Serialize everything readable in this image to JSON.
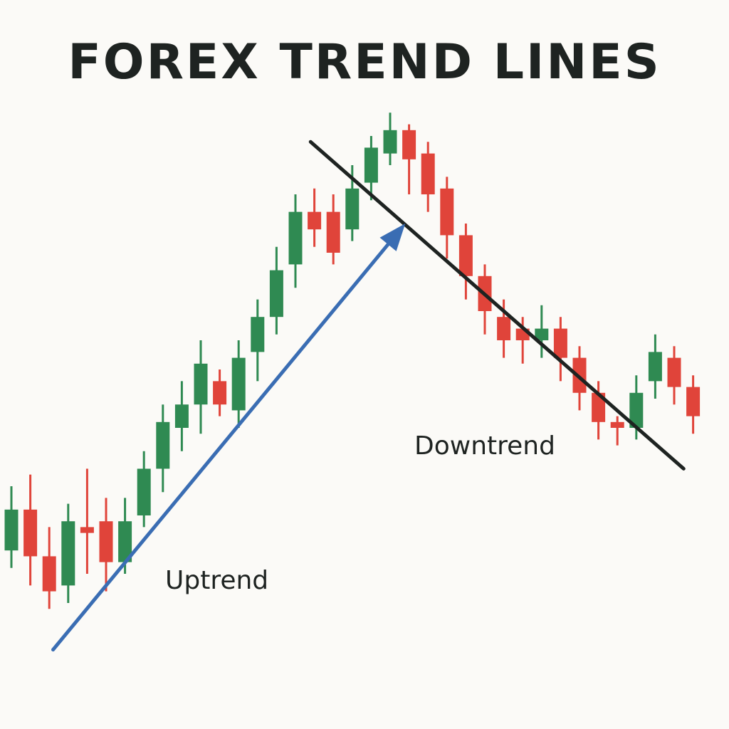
{
  "chart_data": {
    "type": "candlestick",
    "title": "FOREX TREND LINES",
    "xlabel": "",
    "ylabel": "",
    "grid": false,
    "legend": "none",
    "ylim": [
      0,
      100
    ],
    "candles": [
      {
        "open": 24,
        "close": 31,
        "high": 35,
        "low": 21
      },
      {
        "open": 31,
        "close": 23,
        "high": 37,
        "low": 18
      },
      {
        "open": 23,
        "close": 17,
        "high": 28,
        "low": 14
      },
      {
        "open": 18,
        "close": 29,
        "high": 32,
        "low": 15
      },
      {
        "open": 28,
        "close": 27,
        "high": 38,
        "low": 20
      },
      {
        "open": 29,
        "close": 22,
        "high": 33,
        "low": 17
      },
      {
        "open": 22,
        "close": 29,
        "high": 33,
        "low": 20
      },
      {
        "open": 30,
        "close": 38,
        "high": 41,
        "low": 28
      },
      {
        "open": 38,
        "close": 46,
        "high": 49,
        "low": 34
      },
      {
        "open": 45,
        "close": 49,
        "high": 53,
        "low": 41
      },
      {
        "open": 49,
        "close": 56,
        "high": 60,
        "low": 44
      },
      {
        "open": 53,
        "close": 49,
        "high": 55,
        "low": 47
      },
      {
        "open": 48,
        "close": 57,
        "high": 60,
        "low": 45
      },
      {
        "open": 58,
        "close": 64,
        "high": 67,
        "low": 53
      },
      {
        "open": 64,
        "close": 72,
        "high": 76,
        "low": 61
      },
      {
        "open": 73,
        "close": 82,
        "high": 85,
        "low": 69
      },
      {
        "open": 82,
        "close": 79,
        "high": 86,
        "low": 76
      },
      {
        "open": 82,
        "close": 75,
        "high": 85,
        "low": 73
      },
      {
        "open": 79,
        "close": 86,
        "high": 90,
        "low": 77
      },
      {
        "open": 87,
        "close": 93,
        "high": 95,
        "low": 84
      },
      {
        "open": 92,
        "close": 96,
        "high": 99,
        "low": 90
      },
      {
        "open": 96,
        "close": 91,
        "high": 97,
        "low": 85
      },
      {
        "open": 92,
        "close": 85,
        "high": 94,
        "low": 82
      },
      {
        "open": 86,
        "close": 78,
        "high": 88,
        "low": 74
      },
      {
        "open": 78,
        "close": 71,
        "high": 80,
        "low": 67
      },
      {
        "open": 71,
        "close": 65,
        "high": 73,
        "low": 61
      },
      {
        "open": 64,
        "close": 60,
        "high": 67,
        "low": 57
      },
      {
        "open": 62,
        "close": 60,
        "high": 64,
        "low": 56
      },
      {
        "open": 60,
        "close": 62,
        "high": 66,
        "low": 57
      },
      {
        "open": 62,
        "close": 57,
        "high": 64,
        "low": 53
      },
      {
        "open": 57,
        "close": 51,
        "high": 59,
        "low": 48
      },
      {
        "open": 51,
        "close": 46,
        "high": 53,
        "low": 43
      },
      {
        "open": 46,
        "close": 45,
        "high": 47,
        "low": 42
      },
      {
        "open": 45,
        "close": 51,
        "high": 54,
        "low": 43
      },
      {
        "open": 53,
        "close": 58,
        "high": 61,
        "low": 50
      },
      {
        "open": 57,
        "close": 52,
        "high": 59,
        "low": 49
      },
      {
        "open": 52,
        "close": 47,
        "high": 54,
        "low": 44
      }
    ],
    "trendlines": [
      {
        "label": "Uptrend",
        "from": [
          2.2,
          7
        ],
        "to": [
          20.8,
          80
        ]
      },
      {
        "label": "Downtrend",
        "from": [
          15.8,
          94
        ],
        "to": [
          35.5,
          38
        ]
      }
    ],
    "annotations": [
      "Uptrend",
      "Downtrend"
    ],
    "colors": {
      "up": "#2f8a52",
      "down": "#e0443a",
      "uptrend_line": "#3a6db3",
      "downtrend_line": "#1e2321"
    }
  }
}
